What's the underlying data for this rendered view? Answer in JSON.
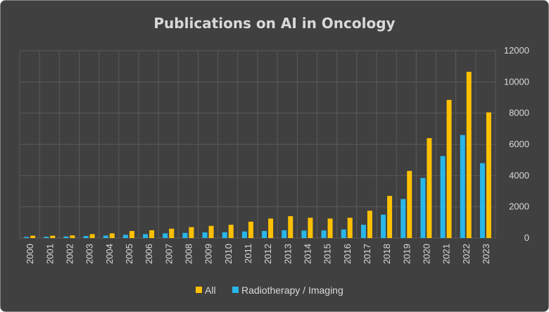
{
  "chart_data": {
    "type": "bar",
    "title": "Publications on AI in Oncology",
    "xlabel": "",
    "ylabel": "",
    "ylim": [
      0,
      12000
    ],
    "yticks": [
      "0",
      "2000",
      "4000",
      "6000",
      "8000",
      "10000",
      "12000"
    ],
    "grid": true,
    "legend_position": "bottom",
    "categories": [
      "2000",
      "2001",
      "2002",
      "2003",
      "2004",
      "2005",
      "2006",
      "2007",
      "2008",
      "2009",
      "2010",
      "2011",
      "2012",
      "2013",
      "2014",
      "2015",
      "2016",
      "2017",
      "2018",
      "2019",
      "2020",
      "2021",
      "2022",
      "2023"
    ],
    "series": [
      {
        "name": "All",
        "color": "#ffc000",
        "values": [
          150,
          150,
          170,
          250,
          300,
          450,
          500,
          600,
          700,
          780,
          850,
          1050,
          1250,
          1400,
          1300,
          1250,
          1300,
          1750,
          2700,
          4300,
          6400,
          8850,
          10650,
          8050
        ]
      },
      {
        "name": "Radiotherapy / Imaging",
        "color": "#29b6e8",
        "values": [
          70,
          80,
          100,
          130,
          160,
          210,
          250,
          300,
          330,
          360,
          370,
          420,
          450,
          500,
          480,
          490,
          550,
          850,
          1500,
          2500,
          3850,
          5250,
          6600,
          4800
        ]
      }
    ],
    "background_color": "#404040",
    "grid_color": "#5a5a5a",
    "text_color": "#d9d9d9"
  }
}
